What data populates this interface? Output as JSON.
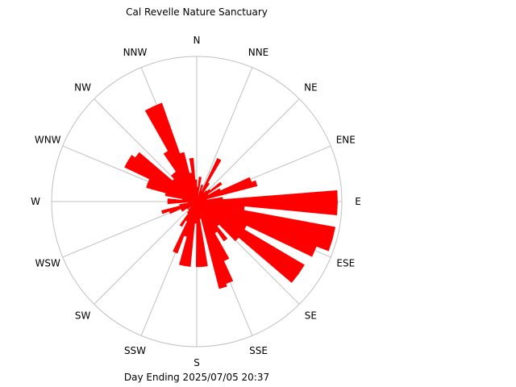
{
  "chart_data": {
    "type": "wind-rose",
    "title": "Cal Revelle Nature Sanctuary",
    "footer": "Day Ending 2025/07/05 20:37",
    "direction_labels": [
      "N",
      "NNE",
      "NE",
      "ENE",
      "E",
      "ESE",
      "SE",
      "SSE",
      "S",
      "SSW",
      "SW",
      "WSW",
      "W",
      "WNW",
      "NW",
      "NNW"
    ],
    "bar_color": "#ff0000",
    "grid_color": "#c0c0c0",
    "r_max": 1.0,
    "bins": [
      {
        "dir": 3,
        "value": 0.1
      },
      {
        "dir": 8,
        "value": 0.17
      },
      {
        "dir": 13,
        "value": 0.04
      },
      {
        "dir": 18,
        "value": 0.12
      },
      {
        "dir": 23,
        "value": 0.08
      },
      {
        "dir": 28,
        "value": 0.33
      },
      {
        "dir": 33,
        "value": 0.15
      },
      {
        "dir": 38,
        "value": 0.08
      },
      {
        "dir": 43,
        "value": 0.1
      },
      {
        "dir": 48,
        "value": 0.12
      },
      {
        "dir": 53,
        "value": 0.21
      },
      {
        "dir": 58,
        "value": 0.09
      },
      {
        "dir": 63,
        "value": 0.18
      },
      {
        "dir": 68,
        "value": 0.4
      },
      {
        "dir": 73,
        "value": 0.43
      },
      {
        "dir": 78,
        "value": 0.07
      },
      {
        "dir": 83,
        "value": 0.18
      },
      {
        "dir": 88,
        "value": 0.97
      },
      {
        "dir": 93,
        "value": 0.97
      },
      {
        "dir": 98,
        "value": 0.33
      },
      {
        "dir": 103,
        "value": 0.97
      },
      {
        "dir": 108,
        "value": 0.97
      },
      {
        "dir": 113,
        "value": 0.88
      },
      {
        "dir": 118,
        "value": 0.38
      },
      {
        "dir": 123,
        "value": 0.86
      },
      {
        "dir": 128,
        "value": 0.86
      },
      {
        "dir": 133,
        "value": 0.38
      },
      {
        "dir": 138,
        "value": 0.22
      },
      {
        "dir": 143,
        "value": 0.33
      },
      {
        "dir": 148,
        "value": 0.25
      },
      {
        "dir": 153,
        "value": 0.45
      },
      {
        "dir": 158,
        "value": 0.6
      },
      {
        "dir": 163,
        "value": 0.62
      },
      {
        "dir": 168,
        "value": 0.12
      },
      {
        "dir": 173,
        "value": 0.45
      },
      {
        "dir": 178,
        "value": 0.45
      },
      {
        "dir": 183,
        "value": 0.15
      },
      {
        "dir": 188,
        "value": 0.45
      },
      {
        "dir": 193,
        "value": 0.45
      },
      {
        "dir": 198,
        "value": 0.25
      },
      {
        "dir": 203,
        "value": 0.38
      },
      {
        "dir": 208,
        "value": 0.15
      },
      {
        "dir": 213,
        "value": 0.2
      },
      {
        "dir": 218,
        "value": 0.1
      },
      {
        "dir": 223,
        "value": 0.08
      },
      {
        "dir": 228,
        "value": 0.05
      },
      {
        "dir": 233,
        "value": 0.08
      },
      {
        "dir": 238,
        "value": 0.12
      },
      {
        "dir": 243,
        "value": 0.12
      },
      {
        "dir": 248,
        "value": 0.2
      },
      {
        "dir": 253,
        "value": 0.25
      },
      {
        "dir": 258,
        "value": 0.12
      },
      {
        "dir": 263,
        "value": 0.06
      },
      {
        "dir": 268,
        "value": 0.2
      },
      {
        "dir": 273,
        "value": 0.2
      },
      {
        "dir": 278,
        "value": 0.1
      },
      {
        "dir": 283,
        "value": 0.22
      },
      {
        "dir": 288,
        "value": 0.36
      },
      {
        "dir": 293,
        "value": 0.36
      },
      {
        "dir": 298,
        "value": 0.55
      },
      {
        "dir": 303,
        "value": 0.55
      },
      {
        "dir": 308,
        "value": 0.52
      },
      {
        "dir": 313,
        "value": 0.22
      },
      {
        "dir": 318,
        "value": 0.25
      },
      {
        "dir": 323,
        "value": 0.25
      },
      {
        "dir": 328,
        "value": 0.4
      },
      {
        "dir": 333,
        "value": 0.72
      },
      {
        "dir": 338,
        "value": 0.72
      },
      {
        "dir": 343,
        "value": 0.35
      },
      {
        "dir": 348,
        "value": 0.2
      },
      {
        "dir": 353,
        "value": 0.3
      },
      {
        "dir": 358,
        "value": 0.15
      }
    ]
  }
}
